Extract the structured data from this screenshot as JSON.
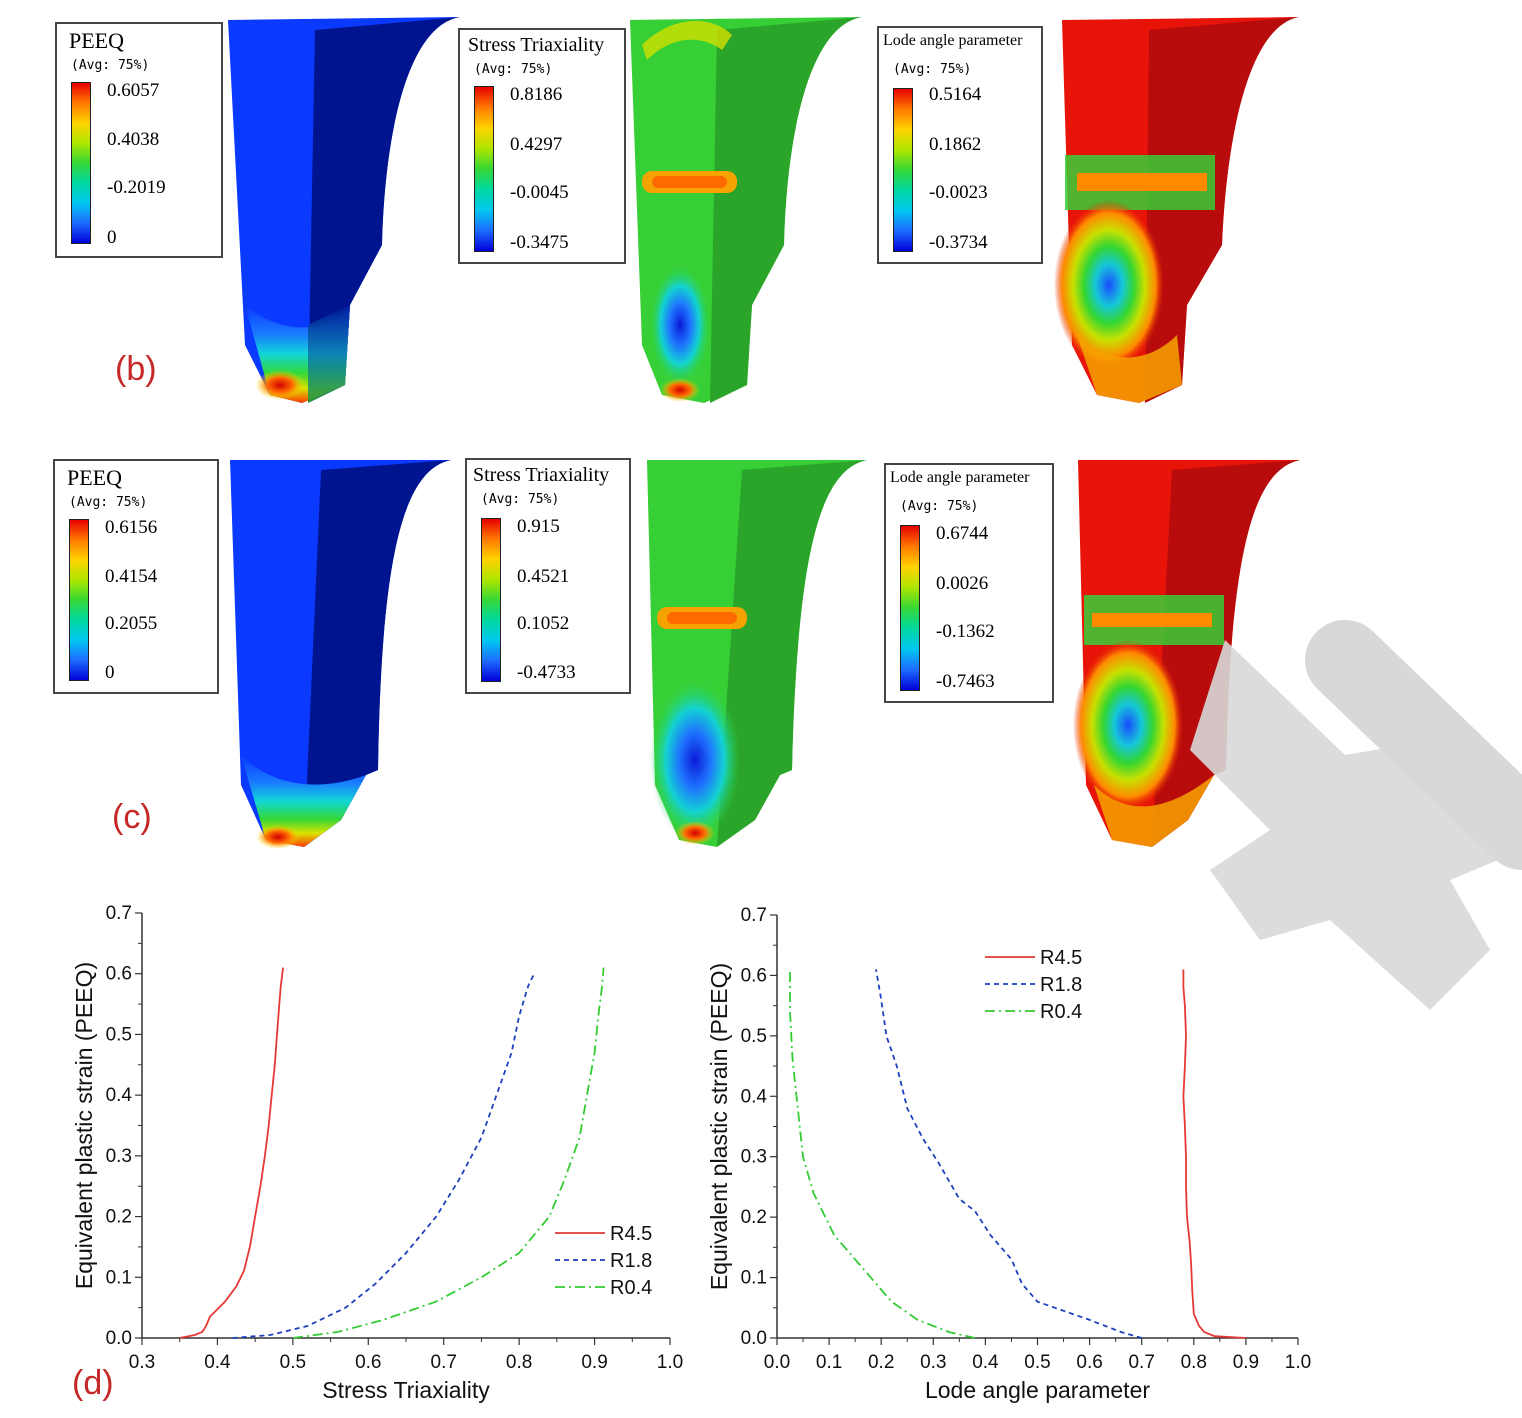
{
  "panel_labels": {
    "b": "(b)",
    "c": "(c)",
    "d": "(d)"
  },
  "legends": {
    "b_peeq": {
      "title": "PEEQ",
      "avg": "(Avg: 75%)",
      "values": [
        "0.6057",
        "0.4038",
        "-0.2019",
        "0"
      ]
    },
    "b_st": {
      "title": "Stress Triaxiality",
      "avg": "(Avg: 75%)",
      "values": [
        "0.8186",
        "0.4297",
        "-0.0045",
        "-0.3475"
      ]
    },
    "b_lode": {
      "title": "Lode angle parameter",
      "avg": "(Avg: 75%)",
      "values": [
        "0.5164",
        "0.1862",
        "-0.0023",
        "-0.3734"
      ]
    },
    "c_peeq": {
      "title": "PEEQ",
      "avg": "(Avg: 75%)",
      "values": [
        "0.6156",
        "0.4154",
        "0.2055",
        "0"
      ]
    },
    "c_st": {
      "title": "Stress Triaxiality",
      "avg": "(Avg: 75%)",
      "values": [
        "0.915",
        "0.4521",
        "0.1052",
        "-0.4733"
      ]
    },
    "c_lode": {
      "title": "Lode angle parameter",
      "avg": "(Avg: 75%)",
      "values": [
        "0.6744",
        "0.0026",
        "-0.1362",
        "-0.7463"
      ]
    }
  },
  "colors": {
    "contour_scale": [
      "#0000d8",
      "#0055ff",
      "#00a6ff",
      "#00e6e6",
      "#00e69c",
      "#00d83c",
      "#3cdc00",
      "#8fe600",
      "#d4e600",
      "#ffd200",
      "#ff9a00",
      "#ff5a00",
      "#e60000"
    ],
    "R4.5": "#e53935",
    "R1.8": "#1e3fbf",
    "R0.4": "#33cc33"
  },
  "chart_data": [
    {
      "type": "line",
      "xlabel": "Stress Triaxiality",
      "ylabel": "Equivalent plastic strain (PEEQ)",
      "xlim": [
        0.3,
        1.0
      ],
      "ylim": [
        0.0,
        0.7
      ],
      "xticks": [
        "0.3",
        "0.4",
        "0.5",
        "0.6",
        "0.7",
        "0.8",
        "0.9",
        "1.0"
      ],
      "yticks": [
        "0.0",
        "0.1",
        "0.2",
        "0.3",
        "0.4",
        "0.5",
        "0.6",
        "0.7"
      ],
      "legend_position": "bottom-right",
      "series": [
        {
          "name": "R4.5",
          "style": "solid",
          "points": [
            [
              0.35,
              0.0
            ],
            [
              0.37,
              0.005
            ],
            [
              0.38,
              0.01
            ],
            [
              0.385,
              0.02
            ],
            [
              0.39,
              0.035
            ],
            [
              0.41,
              0.06
            ],
            [
              0.425,
              0.085
            ],
            [
              0.435,
              0.11
            ],
            [
              0.443,
              0.15
            ],
            [
              0.45,
              0.2
            ],
            [
              0.457,
              0.25
            ],
            [
              0.463,
              0.3
            ],
            [
              0.468,
              0.35
            ],
            [
              0.472,
              0.4
            ],
            [
              0.476,
              0.45
            ],
            [
              0.479,
              0.5
            ],
            [
              0.482,
              0.55
            ],
            [
              0.484,
              0.58
            ],
            [
              0.487,
              0.61
            ]
          ]
        },
        {
          "name": "R1.8",
          "style": "dashed",
          "points": [
            [
              0.42,
              0.0
            ],
            [
              0.47,
              0.005
            ],
            [
              0.52,
              0.02
            ],
            [
              0.57,
              0.05
            ],
            [
              0.61,
              0.09
            ],
            [
              0.65,
              0.14
            ],
            [
              0.69,
              0.2
            ],
            [
              0.72,
              0.26
            ],
            [
              0.75,
              0.33
            ],
            [
              0.77,
              0.4
            ],
            [
              0.79,
              0.47
            ],
            [
              0.8,
              0.53
            ],
            [
              0.812,
              0.58
            ],
            [
              0.82,
              0.6
            ]
          ]
        },
        {
          "name": "R0.4",
          "style": "dashdot",
          "points": [
            [
              0.5,
              0.0
            ],
            [
              0.56,
              0.01
            ],
            [
              0.62,
              0.03
            ],
            [
              0.69,
              0.06
            ],
            [
              0.75,
              0.1
            ],
            [
              0.8,
              0.14
            ],
            [
              0.84,
              0.2
            ],
            [
              0.86,
              0.26
            ],
            [
              0.88,
              0.33
            ],
            [
              0.89,
              0.4
            ],
            [
              0.9,
              0.47
            ],
            [
              0.905,
              0.53
            ],
            [
              0.91,
              0.58
            ],
            [
              0.912,
              0.61
            ]
          ]
        }
      ]
    },
    {
      "type": "line",
      "xlabel": "Lode angle parameter",
      "ylabel": "Equivalent plastic strain (PEEQ)",
      "xlim": [
        0.0,
        1.0
      ],
      "ylim": [
        0.0,
        0.7
      ],
      "xticks": [
        "0.0",
        "0.1",
        "0.2",
        "0.3",
        "0.4",
        "0.5",
        "0.6",
        "0.7",
        "0.8",
        "0.9",
        "1.0"
      ],
      "yticks": [
        "0.0",
        "0.1",
        "0.2",
        "0.3",
        "0.4",
        "0.5",
        "0.6",
        "0.7"
      ],
      "legend_position": "top-left",
      "series": [
        {
          "name": "R4.5",
          "style": "solid",
          "points": [
            [
              0.9,
              0.0
            ],
            [
              0.84,
              0.003
            ],
            [
              0.82,
              0.01
            ],
            [
              0.81,
              0.02
            ],
            [
              0.8,
              0.04
            ],
            [
              0.797,
              0.08
            ],
            [
              0.795,
              0.12
            ],
            [
              0.792,
              0.16
            ],
            [
              0.787,
              0.2
            ],
            [
              0.785,
              0.25
            ],
            [
              0.785,
              0.3
            ],
            [
              0.783,
              0.35
            ],
            [
              0.78,
              0.4
            ],
            [
              0.783,
              0.45
            ],
            [
              0.785,
              0.5
            ],
            [
              0.783,
              0.55
            ],
            [
              0.78,
              0.58
            ],
            [
              0.78,
              0.61
            ]
          ]
        },
        {
          "name": "R1.8",
          "style": "dashed",
          "points": [
            [
              0.7,
              0.0
            ],
            [
              0.66,
              0.01
            ],
            [
              0.6,
              0.03
            ],
            [
              0.5,
              0.06
            ],
            [
              0.47,
              0.09
            ],
            [
              0.45,
              0.13
            ],
            [
              0.41,
              0.17
            ],
            [
              0.38,
              0.21
            ],
            [
              0.35,
              0.23
            ],
            [
              0.31,
              0.29
            ],
            [
              0.28,
              0.33
            ],
            [
              0.25,
              0.38
            ],
            [
              0.23,
              0.45
            ],
            [
              0.21,
              0.5
            ],
            [
              0.2,
              0.56
            ],
            [
              0.19,
              0.61
            ]
          ]
        },
        {
          "name": "R0.4",
          "style": "dashdot",
          "points": [
            [
              0.38,
              0.0
            ],
            [
              0.33,
              0.01
            ],
            [
              0.27,
              0.03
            ],
            [
              0.22,
              0.06
            ],
            [
              0.17,
              0.11
            ],
            [
              0.11,
              0.17
            ],
            [
              0.07,
              0.24
            ],
            [
              0.05,
              0.3
            ],
            [
              0.04,
              0.38
            ],
            [
              0.03,
              0.46
            ],
            [
              0.025,
              0.54
            ],
            [
              0.025,
              0.61
            ]
          ]
        }
      ]
    }
  ]
}
